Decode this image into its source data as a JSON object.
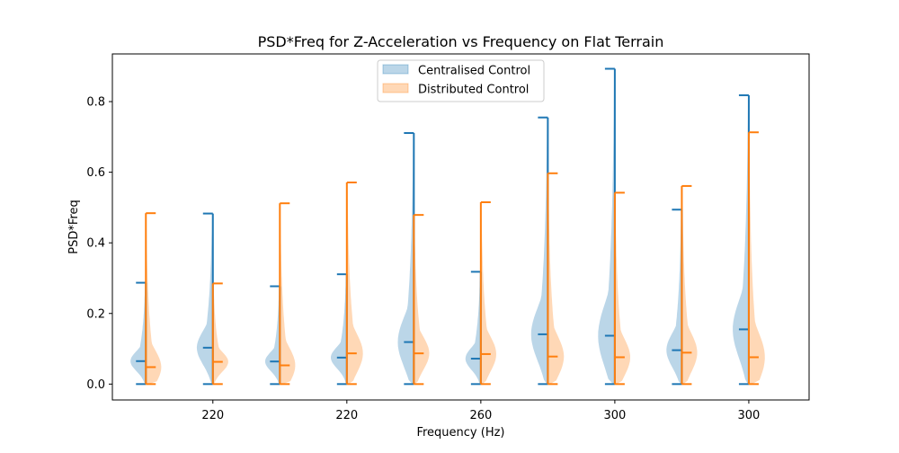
{
  "chart_data": {
    "type": "violin",
    "title": "PSD*Freq for Z-Acceleration vs Frequency on Flat Terrain",
    "xlabel": "Frequency (Hz)",
    "ylabel": "PSD*Freq",
    "ylim": [
      -0.045,
      0.935
    ],
    "yticks": [
      0.0,
      0.2,
      0.4,
      0.6,
      0.8
    ],
    "ytick_labels": [
      "0.0",
      "0.2",
      "0.4",
      "0.6",
      "0.8"
    ],
    "xlim": [
      0.5,
      10.9
    ],
    "xticks": [
      2,
      4,
      6,
      8,
      10
    ],
    "xtick_labels": [
      "220",
      "220",
      "260",
      "300",
      "300"
    ],
    "grid": false,
    "legend": {
      "position": "top-center",
      "entries": [
        {
          "label": "Centralised Control",
          "color": "#1f77b4"
        },
        {
          "label": "Distributed Control",
          "color": "#ff7f0e"
        }
      ]
    },
    "series": [
      {
        "name": "Centralised Control",
        "color": "#1f77b4",
        "side": "left",
        "groups": [
          {
            "pos": 1,
            "min": 0.0,
            "median": 0.065,
            "max": 0.287,
            "width": 0.23
          },
          {
            "pos": 2,
            "min": 0.0,
            "median": 0.103,
            "max": 0.483,
            "width": 0.24
          },
          {
            "pos": 3,
            "min": 0.0,
            "median": 0.064,
            "max": 0.277,
            "width": 0.22
          },
          {
            "pos": 4,
            "min": 0.0,
            "median": 0.075,
            "max": 0.311,
            "width": 0.24
          },
          {
            "pos": 5,
            "min": 0.0,
            "median": 0.119,
            "max": 0.711,
            "width": 0.24
          },
          {
            "pos": 6,
            "min": 0.0,
            "median": 0.072,
            "max": 0.318,
            "width": 0.23
          },
          {
            "pos": 7,
            "min": 0.0,
            "median": 0.141,
            "max": 0.755,
            "width": 0.25
          },
          {
            "pos": 8,
            "min": 0.0,
            "median": 0.137,
            "max": 0.893,
            "width": 0.25
          },
          {
            "pos": 9,
            "min": 0.0,
            "median": 0.096,
            "max": 0.494,
            "width": 0.23
          },
          {
            "pos": 10,
            "min": 0.0,
            "median": 0.155,
            "max": 0.818,
            "width": 0.24
          }
        ]
      },
      {
        "name": "Distributed Control",
        "color": "#ff7f0e",
        "side": "right",
        "groups": [
          {
            "pos": 1,
            "min": 0.0,
            "median": 0.048,
            "max": 0.484,
            "width": 0.23
          },
          {
            "pos": 2,
            "min": 0.0,
            "median": 0.063,
            "max": 0.285,
            "width": 0.23
          },
          {
            "pos": 3,
            "min": 0.0,
            "median": 0.053,
            "max": 0.512,
            "width": 0.23
          },
          {
            "pos": 4,
            "min": 0.0,
            "median": 0.087,
            "max": 0.571,
            "width": 0.24
          },
          {
            "pos": 5,
            "min": 0.0,
            "median": 0.087,
            "max": 0.479,
            "width": 0.23
          },
          {
            "pos": 6,
            "min": 0.0,
            "median": 0.085,
            "max": 0.515,
            "width": 0.23
          },
          {
            "pos": 7,
            "min": 0.0,
            "median": 0.078,
            "max": 0.597,
            "width": 0.24
          },
          {
            "pos": 8,
            "min": 0.0,
            "median": 0.076,
            "max": 0.542,
            "width": 0.23
          },
          {
            "pos": 9,
            "min": 0.0,
            "median": 0.089,
            "max": 0.561,
            "width": 0.23
          },
          {
            "pos": 10,
            "min": 0.0,
            "median": 0.076,
            "max": 0.713,
            "width": 0.24
          }
        ]
      }
    ]
  }
}
